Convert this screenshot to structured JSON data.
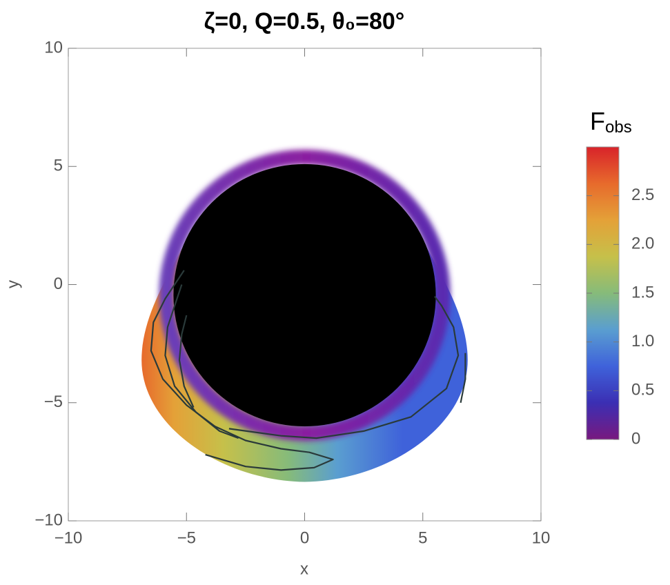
{
  "chart_data": {
    "type": "density",
    "title": "ζ=0, Q=0.5, θ₀=80°",
    "x_label": "x",
    "y_label": "y",
    "xlim": [
      -10,
      10
    ],
    "ylim": [
      -10,
      10
    ],
    "xticks": [
      {
        "value": -10,
        "label": "−10"
      },
      {
        "value": -5,
        "label": "−5"
      },
      0,
      5,
      10
    ],
    "yticks": [
      {
        "value": -10,
        "label": "−10"
      },
      {
        "value": -5,
        "label": "−5"
      },
      0,
      5,
      10
    ],
    "colorbar_label": "F",
    "colorbar_label_sub": "obs",
    "clim": [
      0,
      3
    ],
    "cticks": [
      0,
      0.5,
      {
        "value": 1,
        "label": "1.0"
      },
      1.5,
      {
        "value": 2,
        "label": "2.0"
      },
      2.5
    ],
    "colormap": [
      "#78197f",
      "#3b2fb3",
      "#3f62da",
      "#5a9ed0",
      "#86bb7a",
      "#c6c04a",
      "#e4a138",
      "#e76a2c",
      "#d8232a"
    ]
  }
}
